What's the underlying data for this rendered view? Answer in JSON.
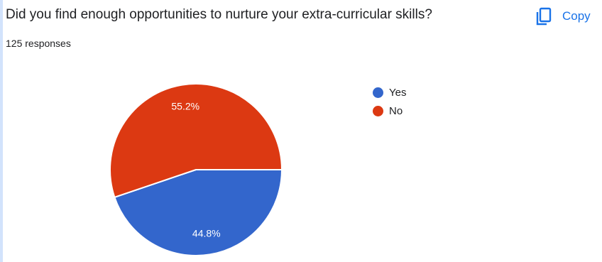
{
  "question": {
    "title": "Did you find enough opportunities to nurture your extra-curricular skills?",
    "responses": "125 responses"
  },
  "toolbar": {
    "copy_label": "Copy",
    "copy_icon": "copy-icon"
  },
  "colors": {
    "yes": "#3366cc",
    "no": "#dc3912",
    "accent": "#1a73e8"
  },
  "chart_data": {
    "type": "pie",
    "categories": [
      "Yes",
      "No"
    ],
    "values": [
      44.8,
      55.2
    ],
    "labels": [
      "44.8%",
      "55.2%"
    ],
    "colors": [
      "#3366cc",
      "#dc3912"
    ],
    "legend_position": "right"
  }
}
